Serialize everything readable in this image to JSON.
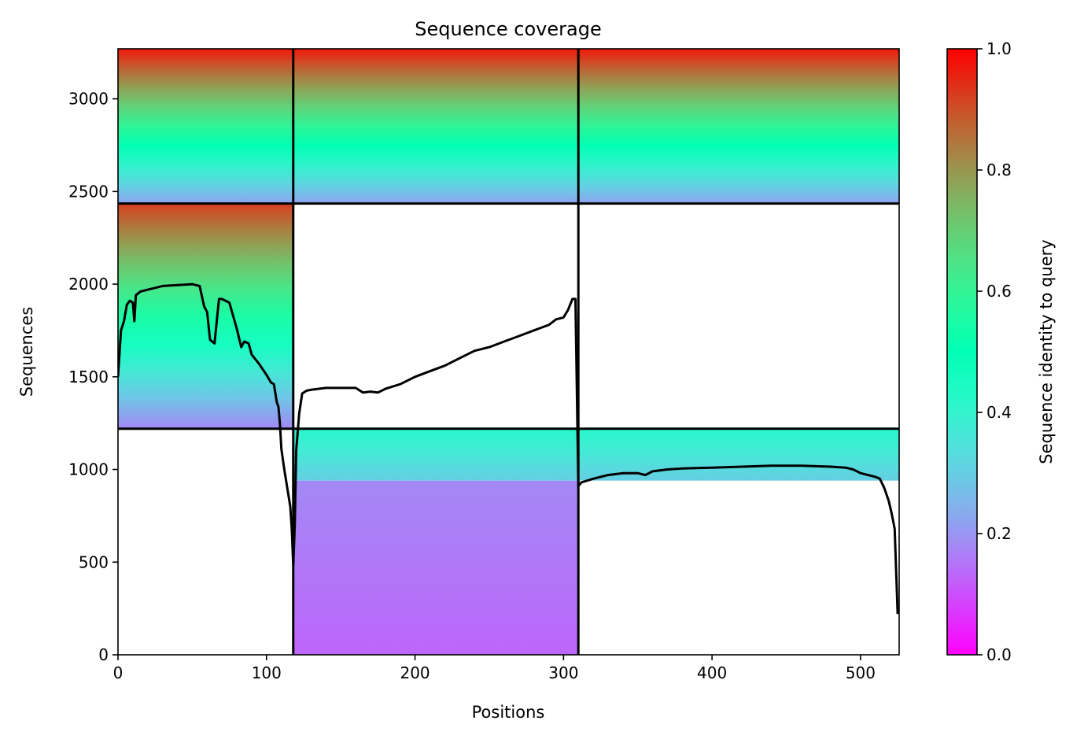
{
  "chart_data": {
    "type": "heatmap",
    "title": "Sequence coverage",
    "xlabel": "Positions",
    "ylabel": "Sequences",
    "xlim": [
      0,
      526
    ],
    "ylim": [
      0,
      3270
    ],
    "x_ticks": [
      0,
      100,
      200,
      300,
      400,
      500
    ],
    "y_ticks": [
      0,
      500,
      1000,
      1500,
      2000,
      2500,
      3000
    ],
    "colorbar": {
      "label": "Sequence identity to query",
      "colormap": "rainbow",
      "range": [
        0.0,
        1.0
      ],
      "ticks": [
        "0.0",
        "0.2",
        "0.4",
        "0.6",
        "0.8",
        "1.0"
      ]
    },
    "segment_boundaries": {
      "positions": [
        118,
        310
      ],
      "sequence_rows": [
        1220,
        2435
      ]
    },
    "coverage_blocks": [
      {
        "x0": 0,
        "x1": 118,
        "y0": 2435,
        "y1": 3270,
        "identity_bottom": 0.22,
        "identity_top": 0.97
      },
      {
        "x0": 118,
        "x1": 526,
        "y0": 2435,
        "y1": 3270,
        "identity_bottom": 0.22,
        "identity_top": 0.97
      },
      {
        "x0": 0,
        "x1": 118,
        "y0": 1220,
        "y1": 2435,
        "identity_bottom": 0.18,
        "identity_top": 0.92
      },
      {
        "x0": 118,
        "x1": 310,
        "y0": 0,
        "y1": 940,
        "identity_bottom": 0.13,
        "identity_top": 0.18
      },
      {
        "x0": 118,
        "x1": 310,
        "y0": 940,
        "y1": 1220,
        "identity_bottom": 0.3,
        "identity_top": 0.42
      },
      {
        "x0": 310,
        "x1": 526,
        "y0": 940,
        "y1": 1220,
        "identity_bottom": 0.3,
        "identity_top": 0.42
      }
    ],
    "coverage_line": {
      "name": "",
      "x": [
        0,
        2,
        4,
        6,
        8,
        10,
        11,
        12,
        15,
        20,
        25,
        30,
        40,
        50,
        55,
        58,
        60,
        62,
        65,
        68,
        70,
        75,
        80,
        83,
        85,
        88,
        90,
        95,
        100,
        103,
        105,
        107,
        108,
        109,
        110,
        112,
        114,
        116,
        117,
        118,
        119,
        120,
        122,
        124,
        127,
        130,
        140,
        150,
        160,
        165,
        170,
        175,
        180,
        190,
        200,
        210,
        220,
        230,
        240,
        250,
        260,
        270,
        280,
        290,
        295,
        300,
        303,
        306,
        308,
        310,
        312,
        320,
        330,
        340,
        350,
        355,
        360,
        370,
        380,
        400,
        420,
        440,
        460,
        480,
        490,
        495,
        500,
        505,
        510,
        513,
        516,
        519,
        521,
        523,
        524,
        525
      ],
      "y": [
        1500,
        1750,
        1800,
        1890,
        1910,
        1900,
        1800,
        1940,
        1960,
        1970,
        1980,
        1990,
        1995,
        2000,
        1990,
        1880,
        1850,
        1700,
        1680,
        1920,
        1920,
        1900,
        1760,
        1660,
        1690,
        1680,
        1620,
        1570,
        1510,
        1470,
        1460,
        1360,
        1340,
        1250,
        1110,
        1000,
        900,
        800,
        680,
        480,
        700,
        1100,
        1300,
        1410,
        1425,
        1430,
        1440,
        1440,
        1440,
        1415,
        1420,
        1415,
        1435,
        1460,
        1500,
        1530,
        1560,
        1600,
        1640,
        1660,
        1690,
        1720,
        1750,
        1780,
        1810,
        1820,
        1860,
        1920,
        1920,
        910,
        930,
        950,
        970,
        980,
        980,
        970,
        990,
        1000,
        1005,
        1010,
        1015,
        1020,
        1020,
        1015,
        1010,
        1000,
        980,
        970,
        960,
        950,
        900,
        830,
        760,
        680,
        450,
        220
      ]
    }
  }
}
